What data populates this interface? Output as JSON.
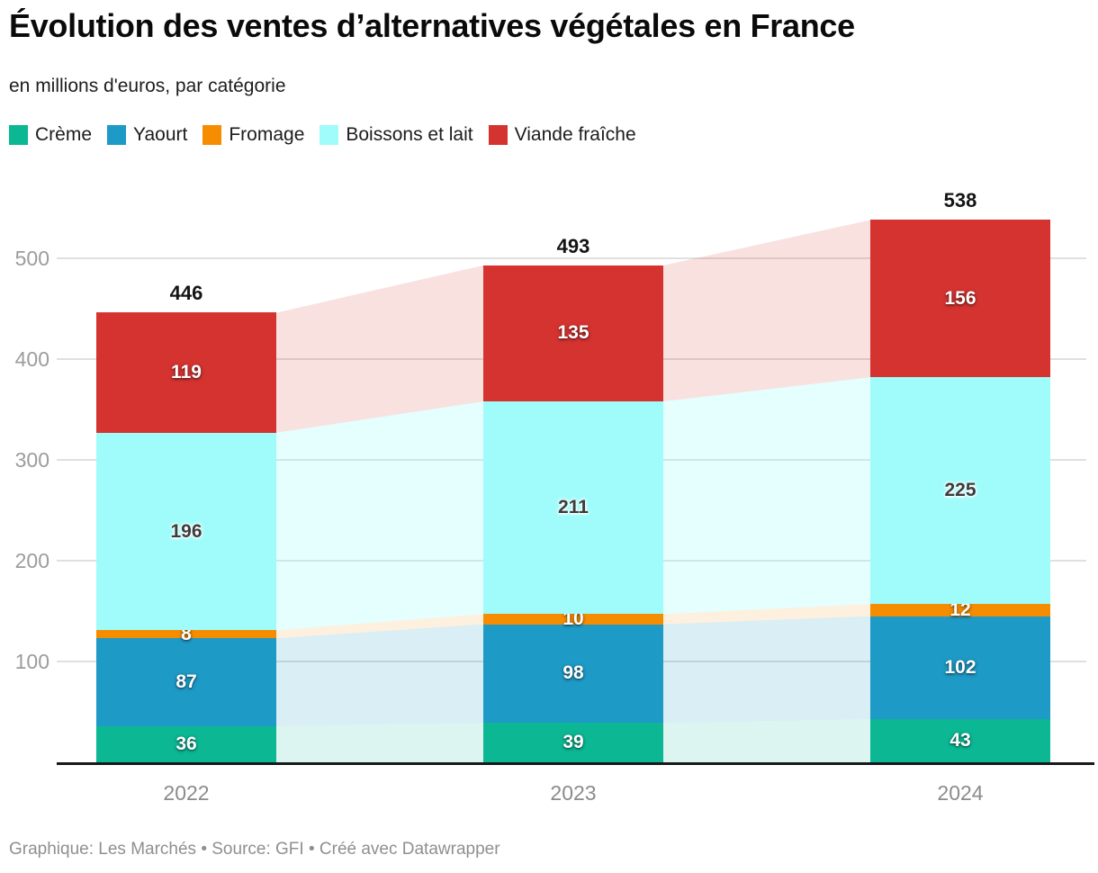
{
  "header": {
    "title": "Évolution des ventes d’alternatives végétales en France",
    "subtitle": "en millions d'euros, par catégorie"
  },
  "footer": {
    "credit": "Graphique: Les Marchés • Source: GFI • Créé avec Datawrapper"
  },
  "chart_data": {
    "type": "bar",
    "variant": "stacked-columns-with-connector-bands",
    "title": "Évolution des ventes d’alternatives végétales en France",
    "subtitle": "en millions d'euros, par catégorie",
    "categories": [
      "2022",
      "2023",
      "2024"
    ],
    "series": [
      {
        "name": "Crème",
        "color": "#0cb794",
        "band_color": "rgba(12,183,148,0.14)",
        "values": [
          36,
          39,
          43
        ],
        "label_theme": "light"
      },
      {
        "name": "Yaourt",
        "color": "#1e9ac6",
        "band_color": "rgba(30,154,198,0.17)",
        "values": [
          87,
          98,
          102
        ],
        "label_theme": "light"
      },
      {
        "name": "Fromage",
        "color": "#f68d00",
        "band_color": "rgba(246,141,0,0.13)",
        "values": [
          8,
          10,
          12
        ],
        "label_theme": "light"
      },
      {
        "name": "Boissons et lait",
        "color": "#a0fcfa",
        "band_color": "rgba(160,252,250,0.28)",
        "values": [
          196,
          211,
          225
        ],
        "label_theme": "dark"
      },
      {
        "name": "Viande fraîche",
        "color": "#d43330",
        "band_color": "rgba(212,51,48,0.15)",
        "values": [
          119,
          135,
          156
        ],
        "label_theme": "light"
      }
    ],
    "totals": [
      446,
      493,
      538
    ],
    "y_ticks": [
      100,
      200,
      300,
      400,
      500
    ],
    "ylim": [
      0,
      560
    ],
    "grid": true,
    "legend_position": "top",
    "axis_colors": {
      "gridline": "#e0e0e0",
      "tick_label": "#9c9c9c",
      "category_label": "#8b8b8b",
      "axis_line": "#17191a"
    }
  }
}
